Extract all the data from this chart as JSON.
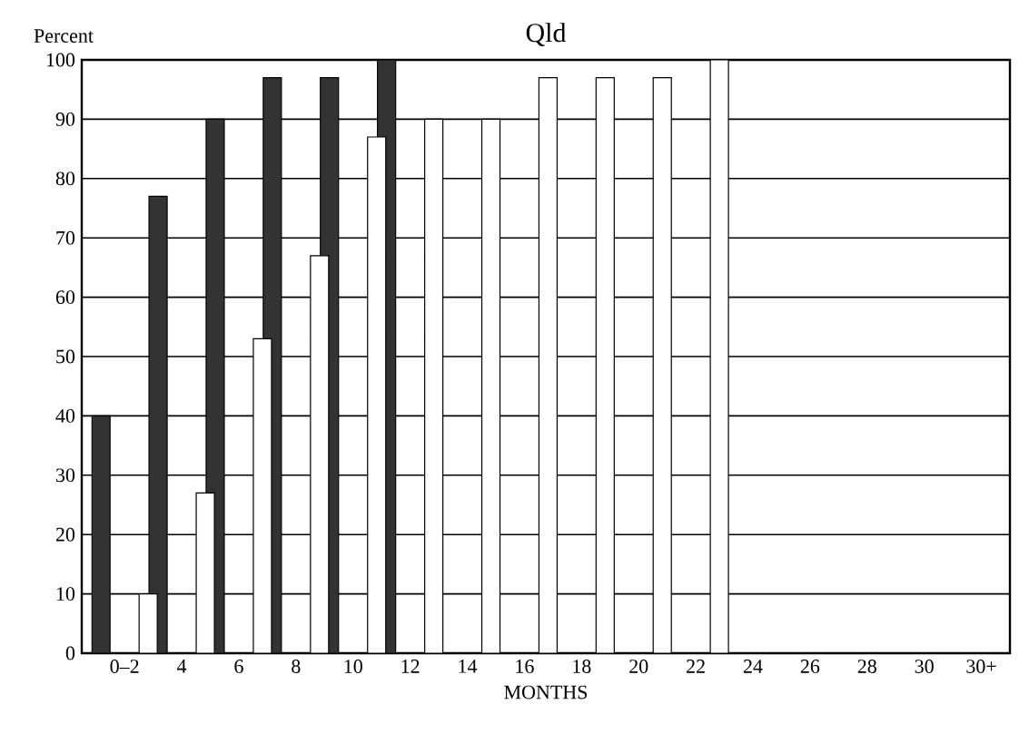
{
  "chart_data": {
    "type": "bar",
    "title": "Qld",
    "xlabel": "MONTHS",
    "ylabel": "Percent",
    "categories": [
      "0–2",
      "4",
      "6",
      "8",
      "10",
      "12",
      "14",
      "16",
      "18",
      "20",
      "22",
      "24",
      "26",
      "28",
      "30",
      "30+"
    ],
    "series": [
      {
        "color": "#333333",
        "values": [
          40,
          77,
          90,
          97,
          97,
          100,
          null,
          null,
          null,
          null,
          null,
          null,
          null,
          null,
          null,
          null
        ]
      },
      {
        "color": "#ffffff",
        "values": [
          10,
          27,
          53,
          67,
          87,
          90,
          90,
          97,
          97,
          97,
          100,
          null,
          null,
          null,
          null,
          null
        ]
      }
    ],
    "ylim": [
      0,
      100
    ],
    "yticks": [
      0,
      10,
      20,
      30,
      40,
      50,
      60,
      70,
      80,
      90,
      100
    ],
    "grid": "y"
  }
}
